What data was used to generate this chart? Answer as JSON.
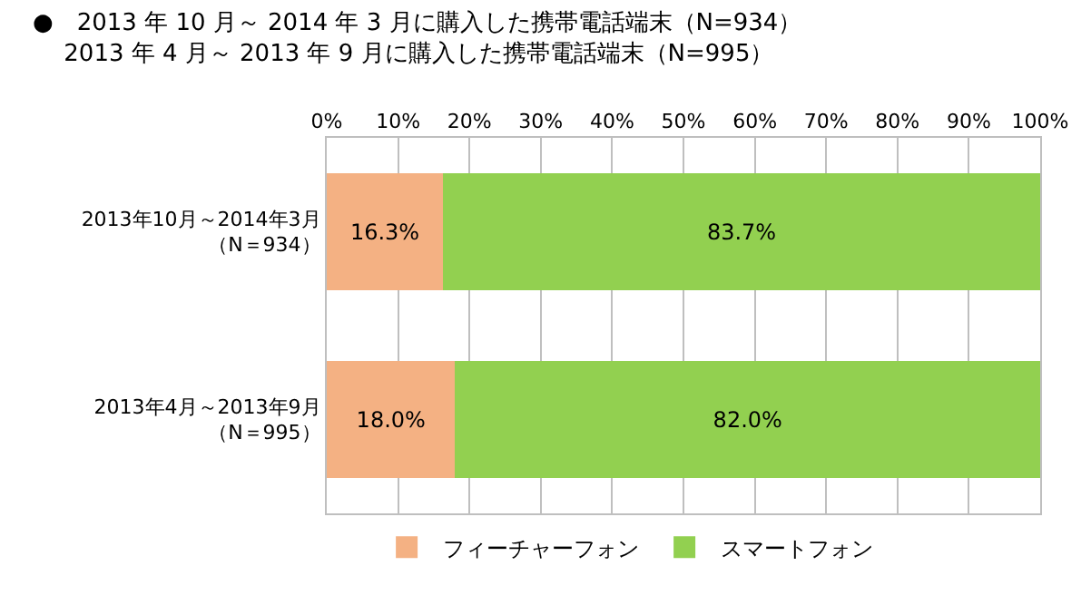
{
  "chart_data": {
    "type": "bar",
    "orientation": "horizontal",
    "stacked": true,
    "title": "●　2013 年 10 月～ 2014 年 3 月に購入した携帯電話端末（N=934）\n　 2013 年 4 月～ 2013 年 9 月に購入した携帯電話端末（N=995）",
    "categories": [
      "2013年10月～2014年3月（N＝934）",
      "2013年4月～2013年9月（N＝995）"
    ],
    "series": [
      {
        "name": "フィーチャーフォン",
        "color": "#f4b183",
        "values": [
          16.3,
          18.0
        ],
        "value_labels": [
          "16.3%",
          "18.0%"
        ]
      },
      {
        "name": "スマートフォン",
        "color": "#92d050",
        "values": [
          83.7,
          82.0
        ],
        "value_labels": [
          "83.7%",
          "82.0%"
        ]
      }
    ],
    "xlim": [
      0,
      100
    ],
    "xticks": [
      {
        "value": 0,
        "label": "0%"
      },
      {
        "value": 10,
        "label": "10%"
      },
      {
        "value": 20,
        "label": "20%"
      },
      {
        "value": 30,
        "label": "30%"
      },
      {
        "value": 40,
        "label": "40%"
      },
      {
        "value": 50,
        "label": "50%"
      },
      {
        "value": 60,
        "label": "60%"
      },
      {
        "value": 70,
        "label": "70%"
      },
      {
        "value": 80,
        "label": "80%"
      },
      {
        "value": 90,
        "label": "90%"
      },
      {
        "value": 100,
        "label": "100%"
      }
    ],
    "grid": "x",
    "legend": "bottom"
  }
}
